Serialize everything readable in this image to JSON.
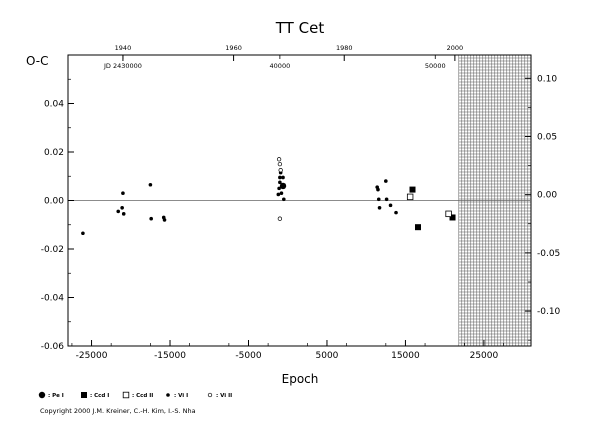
{
  "chart_data": {
    "type": "scatter",
    "title": "TT Cet",
    "xlabel": "Epoch",
    "ylabel": "O-C",
    "xlim": [
      -28000,
      31000
    ],
    "ylim": [
      -0.06,
      0.06
    ],
    "y2lim": [
      -0.13,
      0.12
    ],
    "x_ticks": [
      -25000,
      -15000,
      -5000,
      5000,
      15000,
      25000
    ],
    "x_tick_labels": [
      "-25000",
      "-15000",
      "-5000",
      "5000",
      "15000",
      "25000"
    ],
    "y_ticks": [
      -0.06,
      -0.04,
      -0.02,
      0.0,
      0.02,
      0.04
    ],
    "y_tick_labels": [
      "-0.06",
      "-0.04",
      "-0.02",
      "0.00",
      "0.02",
      "0.04"
    ],
    "y2_ticks": [
      -0.1,
      -0.05,
      0.0,
      0.05,
      0.1
    ],
    "y2_tick_labels": [
      "-0.10",
      "-0.05",
      "0.00",
      "0.05",
      "0.10"
    ],
    "top_axis": {
      "year_labels": [
        {
          "label": "1940",
          "epoch": -21000
        },
        {
          "label": "1960",
          "epoch": -6900
        },
        {
          "label": "1980",
          "epoch": 7200
        },
        {
          "label": "2000",
          "epoch": 21300
        }
      ],
      "jd_labels": [
        {
          "label": "JD 2430000",
          "epoch": -21000
        },
        {
          "label": "40000",
          "epoch": -1000
        },
        {
          "label": "50000",
          "epoch": 18800
        }
      ]
    },
    "future_region_start": 21800,
    "zero_line": 0.0,
    "series": [
      {
        "name": "Pe I",
        "marker": "filled-circle-large",
        "points": [
          [
            -600,
            0.006
          ]
        ]
      },
      {
        "name": "Ccd I",
        "marker": "filled-square",
        "points": [
          [
            15900,
            0.0045
          ],
          [
            16600,
            -0.011
          ],
          [
            21000,
            -0.007
          ]
        ]
      },
      {
        "name": "Ccd II",
        "marker": "open-square",
        "points": [
          [
            15600,
            0.0015
          ],
          [
            20500,
            -0.0055
          ]
        ]
      },
      {
        "name": "Vi I",
        "marker": "filled-circle-small",
        "points": [
          [
            -26100,
            -0.0135
          ],
          [
            -21600,
            -0.0045
          ],
          [
            -21100,
            -0.003
          ],
          [
            -21000,
            0.003
          ],
          [
            -20900,
            -0.0055
          ],
          [
            -17500,
            0.0065
          ],
          [
            -17400,
            -0.0075
          ],
          [
            -15800,
            -0.007
          ],
          [
            -15700,
            -0.008
          ],
          [
            -1200,
            0.0025
          ],
          [
            -1100,
            0.005
          ],
          [
            -1000,
            0.0075
          ],
          [
            -1000,
            0.0095
          ],
          [
            -900,
            0.0115
          ],
          [
            -800,
            0.003
          ],
          [
            -600,
            0.0095
          ],
          [
            -500,
            0.0005
          ],
          [
            11400,
            0.0055
          ],
          [
            11500,
            0.0045
          ],
          [
            11600,
            0.0005
          ],
          [
            11700,
            -0.003
          ],
          [
            12500,
            0.008
          ],
          [
            12600,
            0.0005
          ],
          [
            13100,
            -0.002
          ],
          [
            13800,
            -0.005
          ]
        ]
      },
      {
        "name": "Vi II",
        "marker": "open-circle-small",
        "points": [
          [
            -1100,
            0.017
          ],
          [
            -1000,
            0.015
          ],
          [
            -900,
            0.0125
          ],
          [
            -1000,
            -0.0075
          ]
        ]
      }
    ],
    "grid": false,
    "legend_position": "bottom-left"
  },
  "copyright": "Copyright 2000 J.M. Kreiner, C.-H. Kim, I.-S. Nha"
}
